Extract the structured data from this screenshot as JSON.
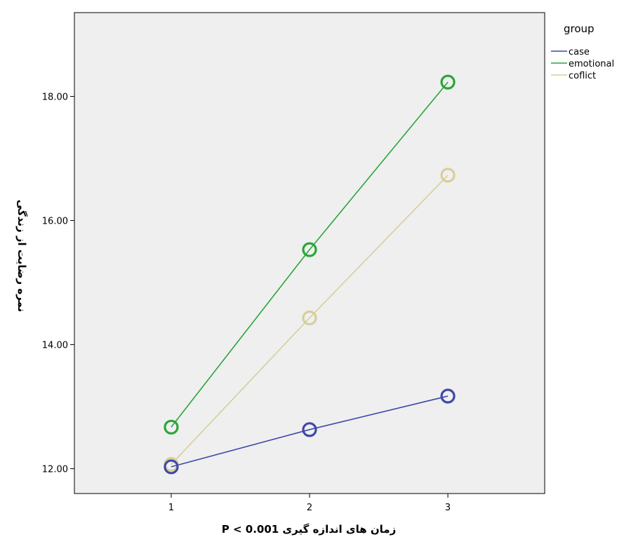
{
  "chart_data": {
    "type": "line",
    "title": "",
    "xlabel": "زمان های اندازه گیری P < 0.001",
    "ylabel": "نمره رضایت از زندگی",
    "x": [
      1,
      2,
      3
    ],
    "x_tick_labels": [
      "1",
      "2",
      "3"
    ],
    "xlim": [
      0.3,
      3.7
    ],
    "ylim": [
      11.6,
      19.35
    ],
    "y_ticks": [
      12,
      14,
      16,
      18
    ],
    "y_tick_labels": [
      "12.00",
      "14.00",
      "16.00",
      "18.00"
    ],
    "grid": false,
    "legend": {
      "title": "group",
      "position": "top-right"
    },
    "marker": "circle",
    "series": [
      {
        "name": "case",
        "values": [
          12.03,
          12.63,
          13.17
        ],
        "color": "#3f48a8"
      },
      {
        "name": "emotional",
        "values": [
          12.67,
          15.53,
          18.23
        ],
        "color": "#2aa63a"
      },
      {
        "name": "coflict",
        "values": [
          12.07,
          14.43,
          16.73
        ],
        "color": "#d6cf9a"
      }
    ],
    "plot_background": "#efefef"
  }
}
